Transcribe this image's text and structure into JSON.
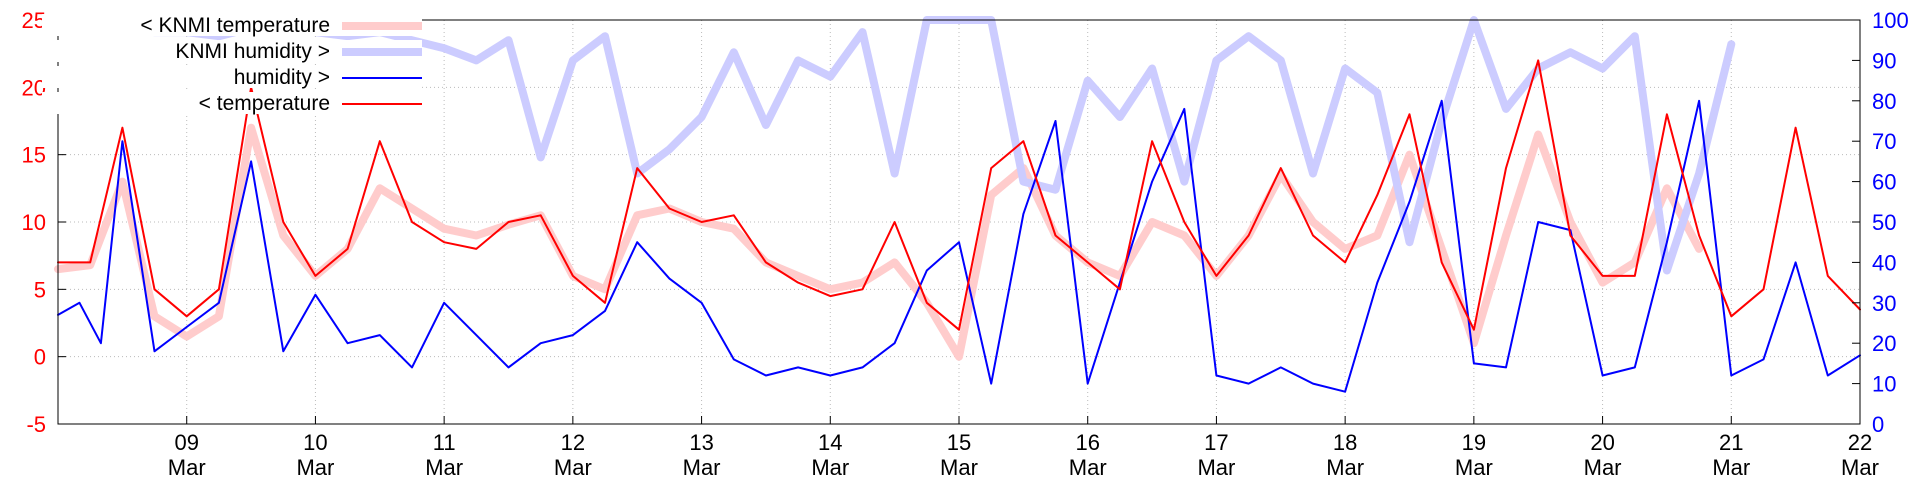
{
  "chart_data": {
    "type": "line",
    "x_tick_labels": [
      {
        "day": "09",
        "month": "Mar"
      },
      {
        "day": "10",
        "month": "Mar"
      },
      {
        "day": "11",
        "month": "Mar"
      },
      {
        "day": "12",
        "month": "Mar"
      },
      {
        "day": "13",
        "month": "Mar"
      },
      {
        "day": "14",
        "month": "Mar"
      },
      {
        "day": "15",
        "month": "Mar"
      },
      {
        "day": "16",
        "month": "Mar"
      },
      {
        "day": "17",
        "month": "Mar"
      },
      {
        "day": "18",
        "month": "Mar"
      },
      {
        "day": "19",
        "month": "Mar"
      },
      {
        "day": "20",
        "month": "Mar"
      },
      {
        "day": "21",
        "month": "Mar"
      },
      {
        "day": "22",
        "month": "Mar"
      }
    ],
    "x_range": [
      "2025-03-08T00:00",
      "2025-03-22T00:00"
    ],
    "y_left": {
      "ticks": [
        -5,
        0,
        5,
        10,
        15,
        20,
        25
      ],
      "range": [
        -5,
        25
      ],
      "color": "#ff0000"
    },
    "y_right": {
      "ticks": [
        0,
        10,
        20,
        30,
        40,
        50,
        60,
        70,
        80,
        90,
        100
      ],
      "range": [
        0,
        100
      ],
      "color": "#0000ff"
    },
    "grid": true,
    "legend_position": "top-left",
    "series": [
      {
        "name": "< KNMI temperature",
        "axis": "left",
        "color": "#ffcccc",
        "style": "thick",
        "points": [
          [
            "2025-03-08T00:00",
            6.5
          ],
          [
            "2025-03-08T06:00",
            6.8
          ],
          [
            "2025-03-08T12:00",
            13
          ],
          [
            "2025-03-08T18:00",
            3
          ],
          [
            "2025-03-09T00:00",
            1.5
          ],
          [
            "2025-03-09T06:00",
            3
          ],
          [
            "2025-03-09T12:00",
            17
          ],
          [
            "2025-03-09T18:00",
            9
          ],
          [
            "2025-03-10T00:00",
            6
          ],
          [
            "2025-03-10T06:00",
            8
          ],
          [
            "2025-03-10T12:00",
            12.5
          ],
          [
            "2025-03-10T18:00",
            11
          ],
          [
            "2025-03-11T00:00",
            9.5
          ],
          [
            "2025-03-11T06:00",
            9
          ],
          [
            "2025-03-11T12:00",
            9.8
          ],
          [
            "2025-03-11T18:00",
            10.5
          ],
          [
            "2025-03-12T00:00",
            6
          ],
          [
            "2025-03-12T06:00",
            5
          ],
          [
            "2025-03-12T12:00",
            10.5
          ],
          [
            "2025-03-12T18:00",
            11
          ],
          [
            "2025-03-13T00:00",
            10
          ],
          [
            "2025-03-13T06:00",
            9.5
          ],
          [
            "2025-03-13T12:00",
            7
          ],
          [
            "2025-03-13T18:00",
            6
          ],
          [
            "2025-03-14T00:00",
            5
          ],
          [
            "2025-03-14T06:00",
            5.5
          ],
          [
            "2025-03-14T12:00",
            7
          ],
          [
            "2025-03-14T18:00",
            4
          ],
          [
            "2025-03-15T00:00",
            0
          ],
          [
            "2025-03-15T06:00",
            12
          ],
          [
            "2025-03-15T12:00",
            14
          ],
          [
            "2025-03-15T18:00",
            9
          ],
          [
            "2025-03-16T00:00",
            7
          ],
          [
            "2025-03-16T06:00",
            6
          ],
          [
            "2025-03-16T12:00",
            10
          ],
          [
            "2025-03-16T18:00",
            9
          ],
          [
            "2025-03-17T00:00",
            6
          ],
          [
            "2025-03-17T06:00",
            9
          ],
          [
            "2025-03-17T12:00",
            13.5
          ],
          [
            "2025-03-17T18:00",
            10
          ],
          [
            "2025-03-18T00:00",
            8
          ],
          [
            "2025-03-18T06:00",
            9
          ],
          [
            "2025-03-18T12:00",
            15
          ],
          [
            "2025-03-18T18:00",
            8
          ],
          [
            "2025-03-19T00:00",
            1
          ],
          [
            "2025-03-19T06:00",
            9
          ],
          [
            "2025-03-19T12:00",
            16.5
          ],
          [
            "2025-03-19T18:00",
            10
          ],
          [
            "2025-03-20T00:00",
            5.5
          ],
          [
            "2025-03-20T06:00",
            7
          ],
          [
            "2025-03-20T12:00",
            12.5
          ],
          [
            "2025-03-20T18:00",
            8
          ]
        ]
      },
      {
        "name": "KNMI humidity >",
        "axis": "right",
        "color": "#ccccff",
        "style": "thick",
        "points": [
          [
            "2025-03-08T00:00",
            100
          ],
          [
            "2025-03-08T06:00",
            100
          ],
          [
            "2025-03-08T12:00",
            98
          ],
          [
            "2025-03-08T18:00",
            97
          ],
          [
            "2025-03-09T00:00",
            97
          ],
          [
            "2025-03-09T06:00",
            96
          ],
          [
            "2025-03-09T12:00",
            98
          ],
          [
            "2025-03-09T18:00",
            99
          ],
          [
            "2025-03-10T00:00",
            97
          ],
          [
            "2025-03-10T06:00",
            96
          ],
          [
            "2025-03-10T12:00",
            97
          ],
          [
            "2025-03-10T18:00",
            95
          ],
          [
            "2025-03-11T00:00",
            93
          ],
          [
            "2025-03-11T06:00",
            90
          ],
          [
            "2025-03-11T12:00",
            95
          ],
          [
            "2025-03-11T18:00",
            66
          ],
          [
            "2025-03-12T00:00",
            90
          ],
          [
            "2025-03-12T06:00",
            96
          ],
          [
            "2025-03-12T12:00",
            62
          ],
          [
            "2025-03-12T18:00",
            68
          ],
          [
            "2025-03-13T00:00",
            76
          ],
          [
            "2025-03-13T06:00",
            92
          ],
          [
            "2025-03-13T12:00",
            74
          ],
          [
            "2025-03-13T18:00",
            90
          ],
          [
            "2025-03-14T00:00",
            86
          ],
          [
            "2025-03-14T06:00",
            97
          ],
          [
            "2025-03-14T12:00",
            62
          ],
          [
            "2025-03-14T18:00",
            100
          ],
          [
            "2025-03-15T00:00",
            100
          ],
          [
            "2025-03-15T06:00",
            100
          ],
          [
            "2025-03-15T12:00",
            60
          ],
          [
            "2025-03-15T18:00",
            58
          ],
          [
            "2025-03-16T00:00",
            85
          ],
          [
            "2025-03-16T06:00",
            76
          ],
          [
            "2025-03-16T12:00",
            88
          ],
          [
            "2025-03-16T18:00",
            60
          ],
          [
            "2025-03-17T00:00",
            90
          ],
          [
            "2025-03-17T06:00",
            96
          ],
          [
            "2025-03-17T12:00",
            90
          ],
          [
            "2025-03-17T18:00",
            62
          ],
          [
            "2025-03-18T00:00",
            88
          ],
          [
            "2025-03-18T06:00",
            82
          ],
          [
            "2025-03-18T12:00",
            45
          ],
          [
            "2025-03-18T18:00",
            75
          ],
          [
            "2025-03-19T00:00",
            100
          ],
          [
            "2025-03-19T06:00",
            78
          ],
          [
            "2025-03-19T12:00",
            88
          ],
          [
            "2025-03-19T18:00",
            92
          ],
          [
            "2025-03-20T00:00",
            88
          ],
          [
            "2025-03-20T06:00",
            96
          ],
          [
            "2025-03-20T12:00",
            38
          ],
          [
            "2025-03-20T18:00",
            62
          ],
          [
            "2025-03-21T00:00",
            94
          ]
        ]
      },
      {
        "name": "humidity >",
        "axis": "right",
        "color": "#0000ff",
        "style": "thin",
        "points": [
          [
            "2025-03-08T00:00",
            27
          ],
          [
            "2025-03-08T04:00",
            30
          ],
          [
            "2025-03-08T08:00",
            20
          ],
          [
            "2025-03-08T12:00",
            70
          ],
          [
            "2025-03-08T18:00",
            18
          ],
          [
            "2025-03-09T00:00",
            24
          ],
          [
            "2025-03-09T06:00",
            30
          ],
          [
            "2025-03-09T12:00",
            65
          ],
          [
            "2025-03-09T18:00",
            18
          ],
          [
            "2025-03-10T00:00",
            32
          ],
          [
            "2025-03-10T06:00",
            20
          ],
          [
            "2025-03-10T12:00",
            22
          ],
          [
            "2025-03-10T18:00",
            14
          ],
          [
            "2025-03-11T00:00",
            30
          ],
          [
            "2025-03-11T06:00",
            22
          ],
          [
            "2025-03-11T12:00",
            14
          ],
          [
            "2025-03-11T18:00",
            20
          ],
          [
            "2025-03-12T00:00",
            22
          ],
          [
            "2025-03-12T06:00",
            28
          ],
          [
            "2025-03-12T12:00",
            45
          ],
          [
            "2025-03-12T18:00",
            36
          ],
          [
            "2025-03-13T00:00",
            30
          ],
          [
            "2025-03-13T06:00",
            16
          ],
          [
            "2025-03-13T12:00",
            12
          ],
          [
            "2025-03-13T18:00",
            14
          ],
          [
            "2025-03-14T00:00",
            12
          ],
          [
            "2025-03-14T06:00",
            14
          ],
          [
            "2025-03-14T12:00",
            20
          ],
          [
            "2025-03-14T18:00",
            38
          ],
          [
            "2025-03-15T00:00",
            45
          ],
          [
            "2025-03-15T06:00",
            10
          ],
          [
            "2025-03-15T12:00",
            52
          ],
          [
            "2025-03-15T18:00",
            75
          ],
          [
            "2025-03-16T00:00",
            10
          ],
          [
            "2025-03-16T06:00",
            35
          ],
          [
            "2025-03-16T12:00",
            60
          ],
          [
            "2025-03-16T18:00",
            78
          ],
          [
            "2025-03-17T00:00",
            12
          ],
          [
            "2025-03-17T06:00",
            10
          ],
          [
            "2025-03-17T12:00",
            14
          ],
          [
            "2025-03-17T18:00",
            10
          ],
          [
            "2025-03-18T00:00",
            8
          ],
          [
            "2025-03-18T06:00",
            35
          ],
          [
            "2025-03-18T12:00",
            55
          ],
          [
            "2025-03-18T18:00",
            80
          ],
          [
            "2025-03-19T00:00",
            15
          ],
          [
            "2025-03-19T06:00",
            14
          ],
          [
            "2025-03-19T12:00",
            50
          ],
          [
            "2025-03-19T18:00",
            48
          ],
          [
            "2025-03-20T00:00",
            12
          ],
          [
            "2025-03-20T06:00",
            14
          ],
          [
            "2025-03-20T12:00",
            45
          ],
          [
            "2025-03-20T18:00",
            80
          ],
          [
            "2025-03-21T00:00",
            12
          ],
          [
            "2025-03-21T06:00",
            16
          ],
          [
            "2025-03-21T12:00",
            40
          ],
          [
            "2025-03-21T18:00",
            12
          ],
          [
            "2025-03-22T00:00",
            17
          ]
        ]
      },
      {
        "name": "< temperature",
        "axis": "left",
        "color": "#ff0000",
        "style": "thin",
        "points": [
          [
            "2025-03-08T00:00",
            7
          ],
          [
            "2025-03-08T06:00",
            7
          ],
          [
            "2025-03-08T12:00",
            17
          ],
          [
            "2025-03-08T18:00",
            5
          ],
          [
            "2025-03-09T00:00",
            3
          ],
          [
            "2025-03-09T06:00",
            5
          ],
          [
            "2025-03-09T12:00",
            20
          ],
          [
            "2025-03-09T18:00",
            10
          ],
          [
            "2025-03-10T00:00",
            6
          ],
          [
            "2025-03-10T06:00",
            8
          ],
          [
            "2025-03-10T12:00",
            16
          ],
          [
            "2025-03-10T18:00",
            10
          ],
          [
            "2025-03-11T00:00",
            8.5
          ],
          [
            "2025-03-11T06:00",
            8
          ],
          [
            "2025-03-11T12:00",
            10
          ],
          [
            "2025-03-11T18:00",
            10.5
          ],
          [
            "2025-03-12T00:00",
            6
          ],
          [
            "2025-03-12T06:00",
            4
          ],
          [
            "2025-03-12T12:00",
            14
          ],
          [
            "2025-03-12T18:00",
            11
          ],
          [
            "2025-03-13T00:00",
            10
          ],
          [
            "2025-03-13T06:00",
            10.5
          ],
          [
            "2025-03-13T12:00",
            7
          ],
          [
            "2025-03-13T18:00",
            5.5
          ],
          [
            "2025-03-14T00:00",
            4.5
          ],
          [
            "2025-03-14T06:00",
            5
          ],
          [
            "2025-03-14T12:00",
            10
          ],
          [
            "2025-03-14T18:00",
            4
          ],
          [
            "2025-03-15T00:00",
            2
          ],
          [
            "2025-03-15T06:00",
            14
          ],
          [
            "2025-03-15T12:00",
            16
          ],
          [
            "2025-03-15T18:00",
            9
          ],
          [
            "2025-03-16T00:00",
            7
          ],
          [
            "2025-03-16T06:00",
            5
          ],
          [
            "2025-03-16T12:00",
            16
          ],
          [
            "2025-03-16T18:00",
            10
          ],
          [
            "2025-03-17T00:00",
            6
          ],
          [
            "2025-03-17T06:00",
            9
          ],
          [
            "2025-03-17T12:00",
            14
          ],
          [
            "2025-03-17T18:00",
            9
          ],
          [
            "2025-03-18T00:00",
            7
          ],
          [
            "2025-03-18T06:00",
            12
          ],
          [
            "2025-03-18T12:00",
            18
          ],
          [
            "2025-03-18T18:00",
            7
          ],
          [
            "2025-03-19T00:00",
            2
          ],
          [
            "2025-03-19T06:00",
            14
          ],
          [
            "2025-03-19T12:00",
            22
          ],
          [
            "2025-03-19T18:00",
            9
          ],
          [
            "2025-03-20T00:00",
            6
          ],
          [
            "2025-03-20T06:00",
            6
          ],
          [
            "2025-03-20T12:00",
            18
          ],
          [
            "2025-03-20T18:00",
            9
          ],
          [
            "2025-03-21T00:00",
            3
          ],
          [
            "2025-03-21T06:00",
            5
          ],
          [
            "2025-03-21T12:00",
            17
          ],
          [
            "2025-03-21T18:00",
            6
          ],
          [
            "2025-03-22T00:00",
            3.5
          ]
        ]
      }
    ]
  }
}
